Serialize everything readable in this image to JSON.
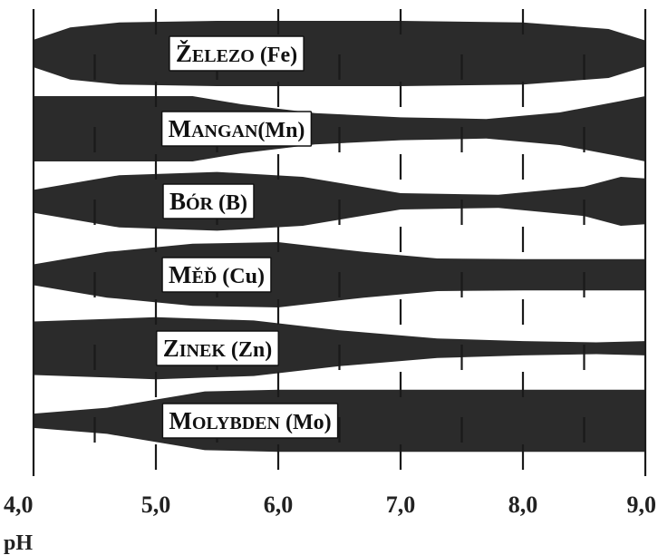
{
  "chart_data": {
    "type": "area",
    "xlabel": "pH",
    "xlim": [
      4.0,
      9.0
    ],
    "tick_values": [
      4.0,
      5.0,
      6.0,
      7.0,
      8.0,
      9.0
    ],
    "tick_labels": [
      "4,0",
      "5,0",
      "6,0",
      "7,0",
      "8,0",
      "9,0"
    ],
    "grid_step": 0.5,
    "series": [
      {
        "name": "ŽELEZO (Fe)",
        "label_parts": [
          {
            "cap": "Ž",
            "rest": "ELEZO"
          },
          {
            "text": " (Fe)"
          }
        ],
        "widths": [
          [
            4.0,
            0.42
          ],
          [
            4.3,
            0.8
          ],
          [
            4.7,
            0.95
          ],
          [
            5.5,
            1.0
          ],
          [
            7.0,
            1.0
          ],
          [
            8.0,
            0.95
          ],
          [
            8.7,
            0.75
          ],
          [
            9.0,
            0.4
          ]
        ]
      },
      {
        "name": "MANGAN (Mn)",
        "label_parts": [
          {
            "cap": "M",
            "rest": "ANGAN"
          },
          {
            "text": "(Mn)"
          }
        ],
        "widths": [
          [
            4.0,
            1.0
          ],
          [
            5.3,
            1.0
          ],
          [
            5.7,
            0.75
          ],
          [
            6.3,
            0.48
          ],
          [
            7.0,
            0.35
          ],
          [
            7.7,
            0.3
          ],
          [
            8.3,
            0.5
          ],
          [
            8.8,
            0.85
          ],
          [
            9.0,
            1.0
          ]
        ]
      },
      {
        "name": "BÓR (B)",
        "label_parts": [
          {
            "cap": "B",
            "rest": "ÓR"
          },
          {
            "text": " (B)"
          }
        ],
        "widths": [
          [
            4.0,
            0.35
          ],
          [
            4.7,
            0.8
          ],
          [
            5.5,
            0.9
          ],
          [
            6.2,
            0.75
          ],
          [
            7.0,
            0.25
          ],
          [
            7.8,
            0.2
          ],
          [
            8.5,
            0.45
          ],
          [
            8.8,
            0.75
          ],
          [
            9.0,
            0.7
          ]
        ]
      },
      {
        "name": "MĚĎ (Cu)",
        "label_parts": [
          {
            "cap": "M",
            "rest": "ĚĎ"
          },
          {
            "text": " (Cu)"
          }
        ],
        "widths": [
          [
            4.0,
            0.32
          ],
          [
            4.6,
            0.7
          ],
          [
            5.3,
            0.95
          ],
          [
            6.0,
            1.0
          ],
          [
            6.7,
            0.7
          ],
          [
            7.3,
            0.5
          ],
          [
            8.0,
            0.48
          ],
          [
            9.0,
            0.48
          ]
        ]
      },
      {
        "name": "ZINEK (Zn)",
        "label_parts": [
          {
            "cap": "Z",
            "rest": "INEK"
          },
          {
            "text": " (Zn)"
          }
        ],
        "widths": [
          [
            4.0,
            0.82
          ],
          [
            5.0,
            0.95
          ],
          [
            5.8,
            0.85
          ],
          [
            6.5,
            0.55
          ],
          [
            7.3,
            0.3
          ],
          [
            8.0,
            0.22
          ],
          [
            8.6,
            0.18
          ],
          [
            9.0,
            0.22
          ]
        ]
      },
      {
        "name": "MOLYBDEN (Mo)",
        "label_parts": [
          {
            "cap": "M",
            "rest": "OLYBDEN"
          },
          {
            "text": " (Mo)"
          }
        ],
        "widths": [
          [
            4.0,
            0.22
          ],
          [
            4.6,
            0.4
          ],
          [
            5.0,
            0.65
          ],
          [
            5.4,
            0.9
          ],
          [
            6.0,
            0.95
          ],
          [
            7.0,
            0.95
          ],
          [
            9.0,
            0.95
          ]
        ]
      }
    ]
  }
}
